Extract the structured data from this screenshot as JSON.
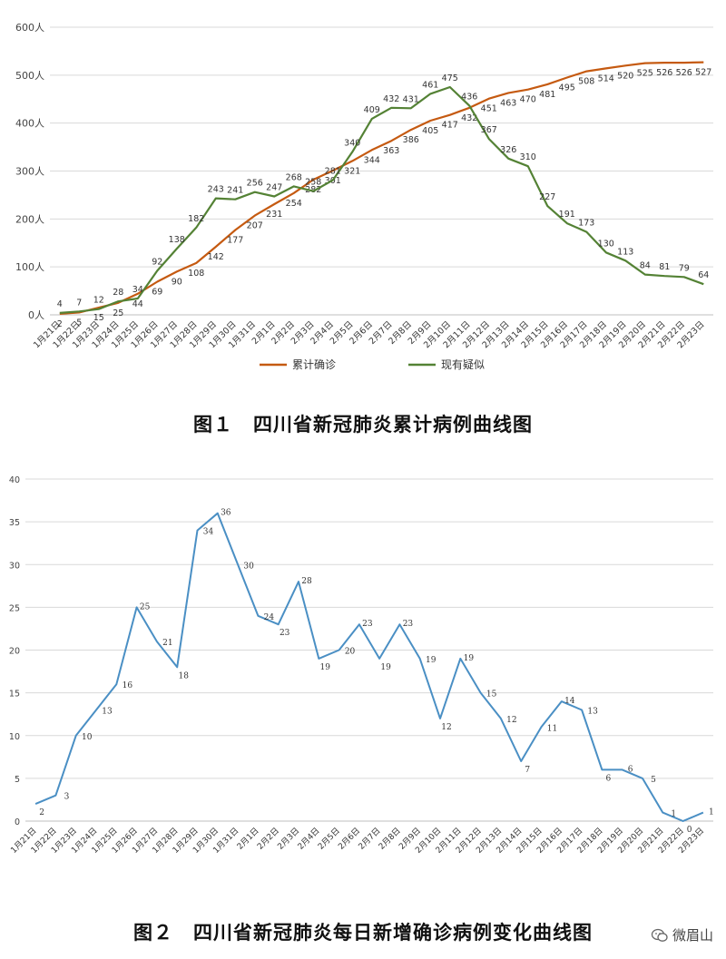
{
  "chart_data": [
    {
      "type": "line",
      "y_unit_suffix": "人",
      "ylim": [
        0,
        600
      ],
      "yticks": [
        "0人",
        "100人",
        "200人",
        "300人",
        "400人",
        "500人",
        "600人"
      ],
      "categories": [
        "1月21日",
        "1月22日",
        "1月23日",
        "1月24日",
        "1月25日",
        "1月26日",
        "1月27日",
        "1月28日",
        "1月29日",
        "1月30日",
        "1月31日",
        "2月1日",
        "2月2日",
        "2月3日",
        "2月4日",
        "2月5日",
        "2月6日",
        "2月7日",
        "2月8日",
        "2月9日",
        "2月10日",
        "2月11日",
        "2月12日",
        "2月13日",
        "2月14日",
        "2月15日",
        "2月16日",
        "2月17日",
        "2月18日",
        "2月19日",
        "2月20日",
        "2月21日",
        "2月22日",
        "2月23日"
      ],
      "grid": true,
      "legend_position": "bottom",
      "series": [
        {
          "name": "累计确诊",
          "color": "#c55a11",
          "values": [
            2,
            5,
            15,
            25,
            44,
            69,
            90,
            108,
            142,
            177,
            207,
            231,
            254,
            282,
            301,
            321,
            344,
            363,
            386,
            405,
            417,
            432,
            451,
            463,
            470,
            481,
            495,
            508,
            514,
            520,
            525,
            526,
            526,
            527
          ]
        },
        {
          "name": "现有疑似",
          "color": "#548235",
          "values": [
            4,
            7,
            12,
            28,
            34,
            92,
            138,
            182,
            243,
            241,
            256,
            247,
            268,
            258,
            281,
            340,
            409,
            432,
            431,
            461,
            475,
            436,
            367,
            326,
            310,
            227,
            191,
            173,
            130,
            113,
            84,
            81,
            79,
            64
          ]
        }
      ],
      "caption": "图１　四川省新冠肺炎累计病例曲线图"
    },
    {
      "type": "line",
      "ylim": [
        0,
        40
      ],
      "yticks": [
        "0",
        "5",
        "10",
        "15",
        "20",
        "25",
        "30",
        "35",
        "40"
      ],
      "categories": [
        "1月21日",
        "1月22日",
        "1月23日",
        "1月24日",
        "1月25日",
        "1月26日",
        "1月27日",
        "1月28日",
        "1月29日",
        "1月30日",
        "1月31日",
        "2月1日",
        "2月2日",
        "2月3日",
        "2月4日",
        "2月5日",
        "2月6日",
        "2月7日",
        "2月8日",
        "2月9日",
        "2月10日",
        "2月11日",
        "2月12日",
        "2月13日",
        "2月14日",
        "2月15日",
        "2月16日",
        "2月17日",
        "2月18日",
        "2月19日",
        "2月20日",
        "2月21日",
        "2月22日",
        "2月23日"
      ],
      "grid": true,
      "series": [
        {
          "color": "#4a8fc4",
          "values": [
            2,
            3,
            10,
            13,
            16,
            25,
            21,
            18,
            34,
            36,
            30,
            24,
            23,
            28,
            19,
            20,
            23,
            19,
            23,
            19,
            12,
            19,
            15,
            12,
            7,
            11,
            14,
            13,
            6,
            6,
            5,
            1,
            0,
            1
          ]
        }
      ],
      "caption": "图２　四川省新冠肺炎每日新增确诊病例变化曲线图"
    }
  ],
  "watermark": {
    "text": "微眉山",
    "icon": "wechat-icon"
  }
}
